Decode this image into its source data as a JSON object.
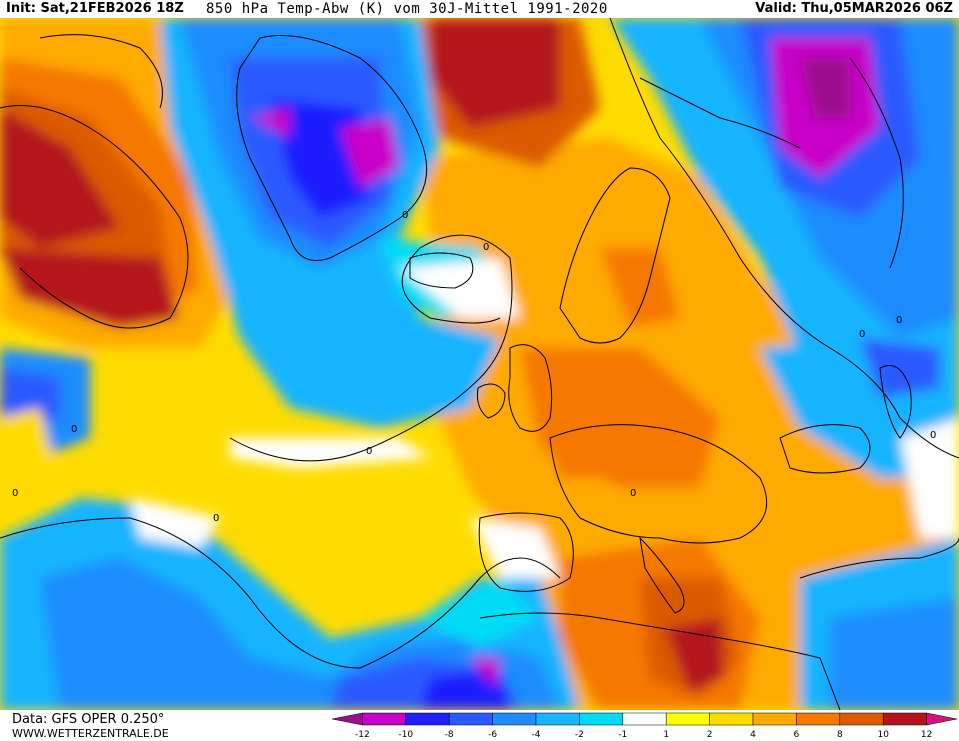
{
  "header": {
    "init": "Init: Sat,21FEB2026 18Z",
    "title": "850 hPa Temp-Abw (K) vom 30J-Mittel 1991-2020",
    "valid": "Valid: Thu,05MAR2026 06Z"
  },
  "footer": {
    "data_source": "Data: GFS OPER 0.250°",
    "website": "WWW.WETTERZENTRALE.DE"
  },
  "legend": {
    "bins": [
      {
        "color": "#9b0f8c"
      },
      {
        "color": "#c800c8"
      },
      {
        "color": "#1e1eff"
      },
      {
        "color": "#2a5aff"
      },
      {
        "color": "#1e8cff"
      },
      {
        "color": "#19b4ff"
      },
      {
        "color": "#00dcf5"
      },
      {
        "color": "#ffffff"
      },
      {
        "color": "#ffff00"
      },
      {
        "color": "#ffdc00"
      },
      {
        "color": "#ffaa00"
      },
      {
        "color": "#f57800"
      },
      {
        "color": "#dc5a00"
      },
      {
        "color": "#b4141e"
      },
      {
        "color": "#d7147d"
      }
    ],
    "ticks": [
      "-12",
      "-10",
      "-8",
      "-6",
      "-4",
      "-2",
      "-1",
      "1",
      "2",
      "4",
      "6",
      "8",
      "10",
      "12"
    ]
  },
  "map": {
    "contour_labels": [
      "0",
      "0",
      "0",
      "0",
      "0",
      "0",
      "0",
      "0",
      "0",
      "0"
    ]
  }
}
